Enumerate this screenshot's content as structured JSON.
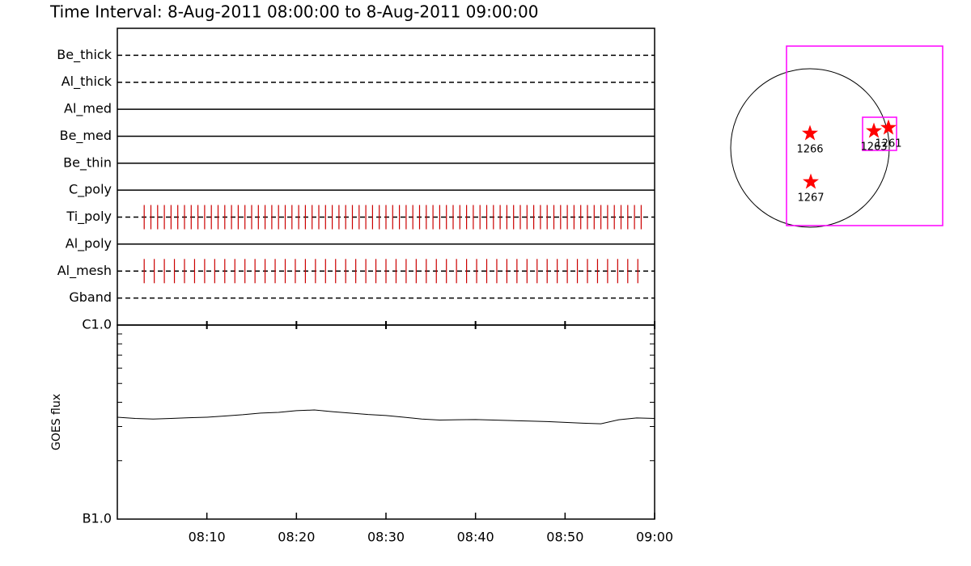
{
  "title": "Time Interval:  8-Aug-2011 08:00:00 to  8-Aug-2011 09:00:00",
  "chart_data": [
    {
      "type": "timeline",
      "categories": [
        "Be_thick",
        "Al_thick",
        "Al_med",
        "Be_med",
        "Be_thin",
        "C_poly",
        "Ti_poly",
        "Al_poly",
        "Al_mesh",
        "Gband"
      ],
      "line_styles": [
        "dashed",
        "dashed",
        "solid",
        "solid",
        "solid",
        "solid",
        "dashed",
        "solid",
        "dashed",
        "dashed"
      ],
      "observations": [
        [],
        [],
        [],
        [],
        [],
        [],
        [
          3,
          3.75,
          4.5,
          5.25,
          6,
          6.75,
          7.5,
          8.25,
          9,
          9.75,
          10.5,
          11.25,
          12,
          12.75,
          13.5,
          14.25,
          15,
          15.75,
          16.5,
          17.25,
          18,
          18.75,
          19.5,
          20.25,
          21,
          21.75,
          22.5,
          23.25,
          24,
          24.75,
          25.5,
          26.25,
          27,
          27.75,
          28.5,
          29.25,
          30,
          30.75,
          31.5,
          32.25,
          33,
          33.75,
          34.5,
          35.25,
          36,
          36.75,
          37.5,
          38.25,
          39,
          39.75,
          40.5,
          41.25,
          42,
          42.75,
          43.5,
          44.25,
          45,
          45.75,
          46.5,
          47.25,
          48,
          48.75,
          49.5,
          50.25,
          51,
          51.75,
          52.5,
          53.25,
          54,
          54.75,
          55.5,
          56.25,
          57,
          57.75,
          58.5
        ],
        [],
        [
          3,
          4.125,
          5.25,
          6.375,
          7.5,
          8.625,
          9.75,
          10.875,
          12,
          13.125,
          14.25,
          15.375,
          16.5,
          17.625,
          18.75,
          19.875,
          21,
          22.125,
          23.25,
          24.375,
          25.5,
          26.625,
          27.75,
          28.875,
          30,
          31.125,
          32.25,
          33.375,
          34.5,
          35.625,
          36.75,
          37.875,
          39,
          40.125,
          41.25,
          42.375,
          43.5,
          44.625,
          45.75,
          46.875,
          48,
          49.125,
          50.25,
          51.375,
          52.5,
          53.625,
          54.75,
          55.875,
          57,
          58.125
        ],
        []
      ],
      "color": "#cc0000",
      "xlim": [
        0,
        60
      ]
    },
    {
      "type": "line",
      "ylabel": "GOES flux",
      "x": [
        0,
        2,
        4,
        6,
        8,
        10,
        12,
        14,
        16,
        18,
        20,
        22,
        24,
        26,
        28,
        30,
        32,
        34,
        36,
        38,
        40,
        42,
        44,
        46,
        48,
        50,
        52,
        54,
        56,
        58,
        60
      ],
      "values": [
        3.35e-07,
        3.3e-07,
        3.28e-07,
        3.3e-07,
        3.33e-07,
        3.35e-07,
        3.4e-07,
        3.45e-07,
        3.52e-07,
        3.55e-07,
        3.62e-07,
        3.65e-07,
        3.58e-07,
        3.52e-07,
        3.46e-07,
        3.42e-07,
        3.35e-07,
        3.28e-07,
        3.24e-07,
        3.25e-07,
        3.26e-07,
        3.24e-07,
        3.22e-07,
        3.2e-07,
        3.18e-07,
        3.15e-07,
        3.12e-07,
        3.1e-07,
        3.25e-07,
        3.32e-07,
        3.3e-07
      ],
      "color": "#000000",
      "xlim": [
        0,
        60
      ],
      "xticks": [
        {
          "value": 10,
          "label": "08:10"
        },
        {
          "value": 20,
          "label": "08:20"
        },
        {
          "value": 30,
          "label": "08:30"
        },
        {
          "value": 40,
          "label": "08:40"
        },
        {
          "value": 50,
          "label": "08:50"
        },
        {
          "value": 60,
          "label": "09:00"
        }
      ],
      "ylim": [
        1e-07,
        1e-06
      ],
      "log_scale": true,
      "yticks": [
        {
          "value": 1e-07,
          "label": "B1.0"
        },
        {
          "value": 1e-06,
          "label": "C1.0"
        }
      ],
      "yminorticks": [
        2e-07,
        3e-07,
        4e-07,
        5e-07,
        6e-07,
        7e-07,
        8e-07,
        9e-07
      ]
    },
    {
      "type": "map",
      "xlim": [
        -1000,
        1990
      ],
      "ylim": [
        -1170,
        1830
      ],
      "disk_radius": 980,
      "box_color": "#ff00ff",
      "boxes": [
        {
          "x": [
            -290,
            1640
          ],
          "y": [
            -960,
            1260
          ]
        },
        {
          "x": [
            650,
            1070
          ],
          "y": [
            -30,
            380
          ]
        }
      ],
      "color": "#ff0000",
      "points": [
        {
          "label": "1266",
          "x": 0,
          "y": 180
        },
        {
          "label": "1267",
          "x": 10,
          "y": -420
        },
        {
          "label": "1263",
          "x": 790,
          "y": 210
        },
        {
          "label": "1261",
          "x": 970,
          "y": 250
        }
      ]
    }
  ]
}
